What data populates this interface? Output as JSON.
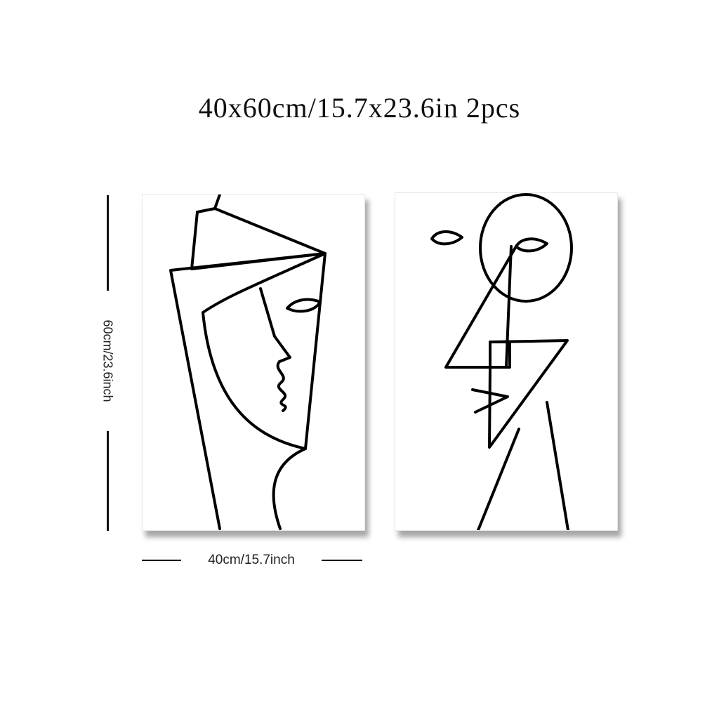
{
  "title": "40x60cm/15.7x23.6in 2pcs",
  "dimensions": {
    "height_label": "60cm/23.6inch",
    "width_label": "40cm/15.7inch"
  },
  "artworks": [
    {
      "name": "abstract-line-face-left"
    },
    {
      "name": "abstract-line-face-right"
    }
  ],
  "colors": {
    "line": "#000000",
    "background": "#ffffff",
    "shadow": "#555555"
  }
}
